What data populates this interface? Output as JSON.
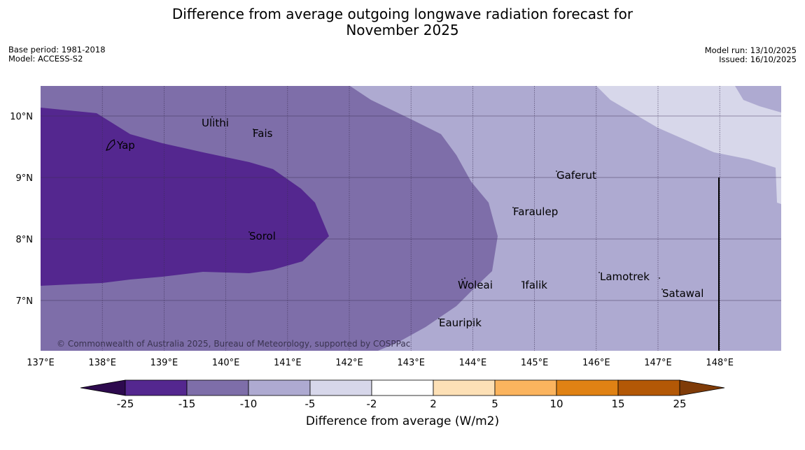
{
  "title_line1": "Difference from average outgoing longwave radiation forecast for",
  "title_line2": "November 2025",
  "base_period": "Base period: 1981-2018",
  "model": "Model: ACCESS-S2",
  "model_run": "Model run: 13/10/2025",
  "issued": "Issued: 16/10/2025",
  "copyright": "© Commonwealth of Australia 2025, Bureau of Meteorology, supported by COSPPac",
  "lon_labels": [
    "137°E",
    "138°E",
    "139°E",
    "140°E",
    "141°E",
    "142°E",
    "143°E",
    "144°E",
    "145°E",
    "146°E",
    "147°E",
    "148°E"
  ],
  "lat_labels": [
    "10°N",
    "9°N",
    "8°N",
    "7°N"
  ],
  "places": [
    "Yap",
    "Ulithi",
    "Fais",
    "Sorol",
    "Gaferut",
    "Faraulep",
    "Woleai",
    "Ifalik",
    "Lamotrek",
    "Satawal",
    "Eauripik"
  ],
  "colorbar": {
    "title": "Difference from average (W/m2)",
    "ticks": [
      "-25",
      "-15",
      "-10",
      "-5",
      "-2",
      "2",
      "5",
      "10",
      "15",
      "25"
    ],
    "colors": [
      "#2d0a4e",
      "#54278f",
      "#7e6ea9",
      "#aeaad1",
      "#d7d7ea",
      "#ffffff",
      "#fde0b6",
      "#fbb45e",
      "#e08214",
      "#b35806",
      "#7f3b08"
    ]
  },
  "colors": {
    "lt_minus25": "#54278f",
    "lt_minus15": "#7e6ea9",
    "lt_minus10": "#aeaad1",
    "lt_minus5": "#d7d7ea",
    "grid": "#3a2d52"
  }
}
